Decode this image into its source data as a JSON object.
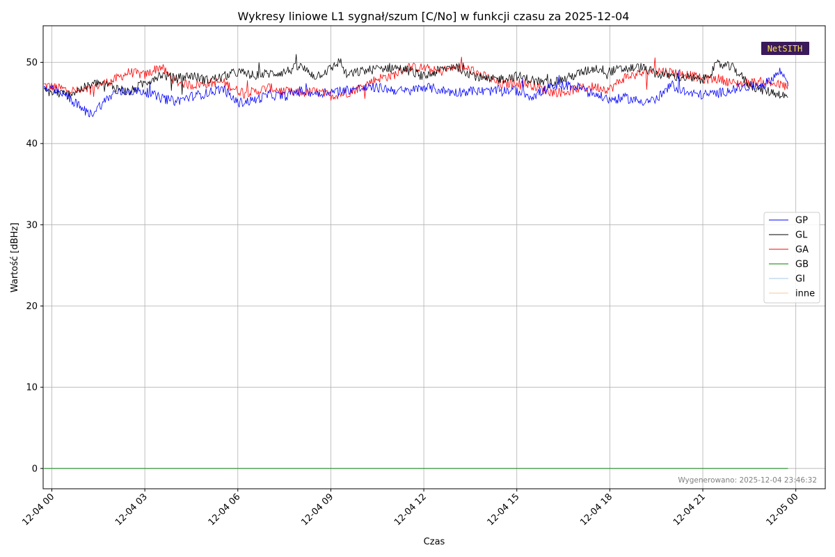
{
  "chart_data": {
    "type": "line",
    "title": "Wykresy liniowe L1 sygnał/szum [C/No] w funkcji czasu za 2025-12-04",
    "xlabel": "Czas",
    "ylabel": "Wartość [dBHz]",
    "xlim": [
      -0.28,
      24.95
    ],
    "ylim": [
      -2.5,
      54.5
    ],
    "x_ticks": [
      {
        "value": 0,
        "label": "12-04 00"
      },
      {
        "value": 3,
        "label": "12-04 03"
      },
      {
        "value": 6,
        "label": "12-04 06"
      },
      {
        "value": 9,
        "label": "12-04 09"
      },
      {
        "value": 12,
        "label": "12-04 12"
      },
      {
        "value": 15,
        "label": "12-04 15"
      },
      {
        "value": 18,
        "label": "12-04 18"
      },
      {
        "value": 21,
        "label": "12-04 21"
      },
      {
        "value": 24,
        "label": "12-05 00"
      }
    ],
    "y_ticks": [
      0,
      10,
      20,
      30,
      40,
      50
    ],
    "grid": true,
    "legend_position": "right",
    "series": [
      {
        "name": "GP",
        "color": "#0000ff",
        "x": [
          -0.25,
          0,
          0.5,
          1,
          1.25,
          1.5,
          2,
          2.5,
          3,
          3.5,
          4,
          4.5,
          5,
          5.5,
          6,
          6.5,
          7,
          7.5,
          8,
          8.5,
          9,
          9.5,
          10,
          10.5,
          11,
          11.5,
          12,
          12.5,
          13,
          13.5,
          14,
          14.5,
          15,
          15.5,
          16,
          16.5,
          17,
          17.5,
          18,
          18.5,
          19,
          19.5,
          20,
          20.5,
          21,
          21.5,
          22,
          22.5,
          23,
          23.5,
          23.75
        ],
        "y": [
          46.8,
          46.6,
          45.8,
          44.2,
          43.6,
          44.5,
          46.2,
          46.5,
          46.4,
          45.6,
          45.2,
          45.8,
          46.2,
          46.8,
          45.0,
          45.3,
          46.0,
          45.8,
          46.5,
          46.2,
          46.4,
          46.6,
          46.8,
          46.9,
          46.6,
          46.4,
          47.0,
          46.6,
          46.3,
          46.5,
          46.4,
          46.6,
          46.5,
          45.8,
          46.8,
          47.2,
          46.9,
          46.1,
          45.4,
          45.6,
          45.2,
          45.4,
          47.2,
          46.2,
          46.0,
          46.2,
          46.7,
          47.0,
          47.3,
          48.9,
          47.6
        ]
      },
      {
        "name": "GL",
        "color": "#000000",
        "x": [
          -0.25,
          0,
          0.5,
          1,
          1.5,
          2,
          2.5,
          3,
          3.5,
          4,
          4.5,
          5,
          5.5,
          6,
          6.5,
          7,
          7.5,
          8,
          8.5,
          9,
          9.3,
          9.5,
          10,
          10.5,
          11,
          11.5,
          12,
          12.5,
          13,
          13.5,
          14,
          14.5,
          15,
          15.5,
          16,
          16.5,
          17,
          17.5,
          18,
          18.5,
          19,
          19.5,
          20,
          20.5,
          21,
          21.5,
          22,
          22.5,
          23,
          23.5,
          23.75
        ],
        "y": [
          46.5,
          46.3,
          46.0,
          46.8,
          47.5,
          47.0,
          46.3,
          47.5,
          48.5,
          48.0,
          48.4,
          47.8,
          48.2,
          48.8,
          48.4,
          48.6,
          48.8,
          49.5,
          48.3,
          49.2,
          50.2,
          48.4,
          48.9,
          49.2,
          49.4,
          49.0,
          48.2,
          49.0,
          49.6,
          48.6,
          47.8,
          48.0,
          48.3,
          47.8,
          47.4,
          47.9,
          48.6,
          49.3,
          48.9,
          49.2,
          49.4,
          48.6,
          48.3,
          48.1,
          47.8,
          49.8,
          49.3,
          47.2,
          46.5,
          46.1,
          45.6
        ]
      },
      {
        "name": "GA",
        "color": "#ff0000",
        "x": [
          -0.25,
          0,
          0.5,
          1,
          1.5,
          2,
          2.5,
          3,
          3.5,
          4,
          4.5,
          5,
          5.5,
          6,
          6.5,
          7,
          7.5,
          8,
          8.5,
          9,
          9.5,
          10,
          10.5,
          11,
          11.5,
          12,
          12.5,
          13,
          13.5,
          14,
          14.5,
          15,
          15.5,
          16,
          16.5,
          17,
          17.5,
          18,
          18.5,
          19,
          19.5,
          20,
          20.5,
          21,
          21.5,
          22,
          22.5,
          23,
          23.5,
          23.75
        ],
        "y": [
          47.2,
          47.0,
          46.6,
          46.4,
          47.2,
          47.8,
          48.8,
          48.4,
          49.5,
          47.6,
          47.2,
          47.4,
          47.6,
          46.5,
          46.3,
          46.9,
          46.4,
          46.2,
          46.4,
          45.9,
          46.2,
          47.0,
          48.0,
          48.4,
          49.4,
          49.3,
          48.8,
          49.4,
          49.1,
          48.2,
          47.2,
          47.6,
          47.2,
          46.4,
          46.3,
          46.8,
          47.0,
          46.7,
          48.2,
          48.6,
          49.0,
          48.8,
          48.5,
          47.9,
          48.0,
          47.4,
          47.5,
          47.6,
          47.2,
          47.0
        ]
      },
      {
        "name": "GB",
        "color": "#008000",
        "x": [
          -0.25,
          23.75
        ],
        "y": [
          0,
          0
        ]
      },
      {
        "name": "GI",
        "color": "#a6c8ea",
        "x": [
          -0.25,
          23.75
        ],
        "y": [
          0,
          0
        ]
      },
      {
        "name": "inne",
        "color": "#fcc596",
        "x": [
          -0.25,
          23.75
        ],
        "y": [
          0,
          0
        ]
      }
    ]
  },
  "footer_text": "Wygenerowano: 2025-12-04 23:46:32",
  "logo": {
    "text": "NetSITH",
    "background": "#3a1a5a",
    "text_color": "#ffe14a"
  }
}
